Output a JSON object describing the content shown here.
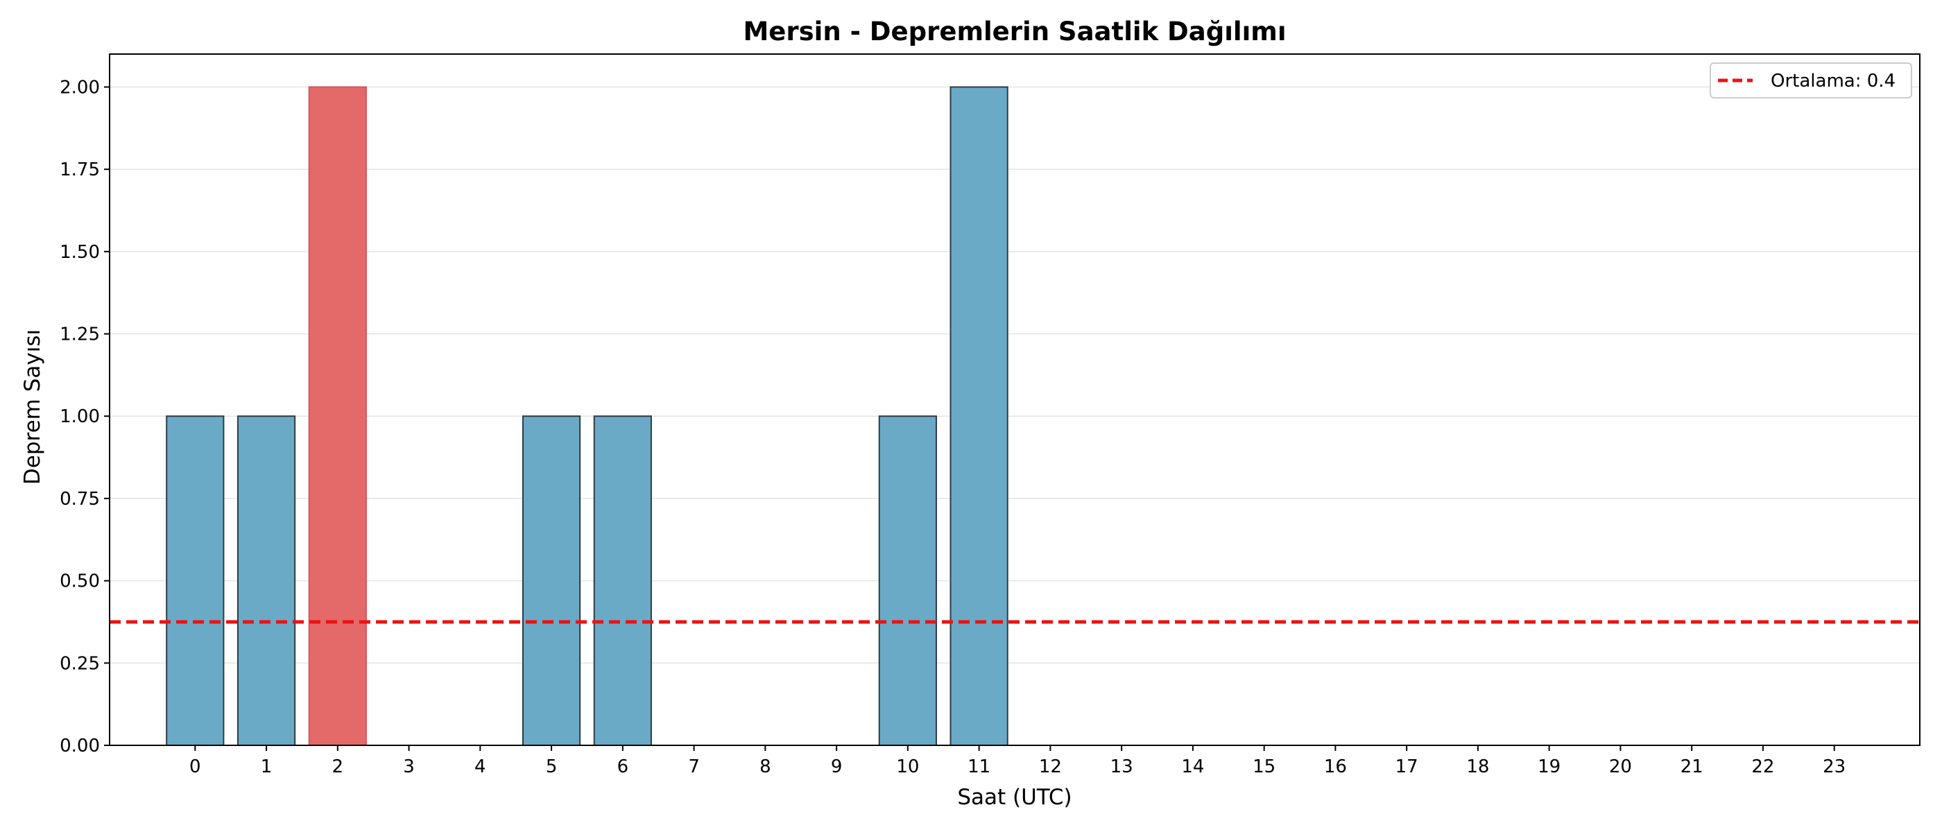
{
  "chart_data": {
    "type": "bar",
    "title": "Mersin - Depremlerin Saatlik Dağılımı",
    "xlabel": "Saat (UTC)",
    "ylabel": "Deprem Sayısı",
    "categories": [
      "0",
      "1",
      "2",
      "3",
      "4",
      "5",
      "6",
      "7",
      "8",
      "9",
      "10",
      "11",
      "12",
      "13",
      "14",
      "15",
      "16",
      "17",
      "18",
      "19",
      "20",
      "21",
      "22",
      "23"
    ],
    "values": [
      1,
      1,
      2,
      0,
      0,
      1,
      1,
      0,
      0,
      0,
      1,
      2,
      0,
      0,
      0,
      0,
      0,
      0,
      0,
      0,
      0,
      0,
      0,
      0
    ],
    "highlight_index": 2,
    "ylim": [
      0,
      2.1
    ],
    "yticks": [
      0,
      0.25,
      0.5,
      0.75,
      1.0,
      1.25,
      1.5,
      1.75,
      2.0
    ],
    "ytick_labels": [
      "0.00",
      "0.25",
      "0.50",
      "0.75",
      "1.00",
      "1.25",
      "1.50",
      "1.75",
      "2.00"
    ],
    "grid": "horizontal",
    "mean_line": {
      "value": 0.375,
      "label": "Ortalama: 0.4"
    },
    "legend": {
      "placement": "top-right",
      "entries": [
        "Ortalama: 0.4"
      ]
    },
    "colors": {
      "bar": "#6aaac6",
      "highlight_bar": "#e46a6a",
      "bar_edge": "#2e3b44",
      "highlight_edge": "#d9535c",
      "mean_line": "#ee1111",
      "grid": "#e4e4e4"
    }
  }
}
